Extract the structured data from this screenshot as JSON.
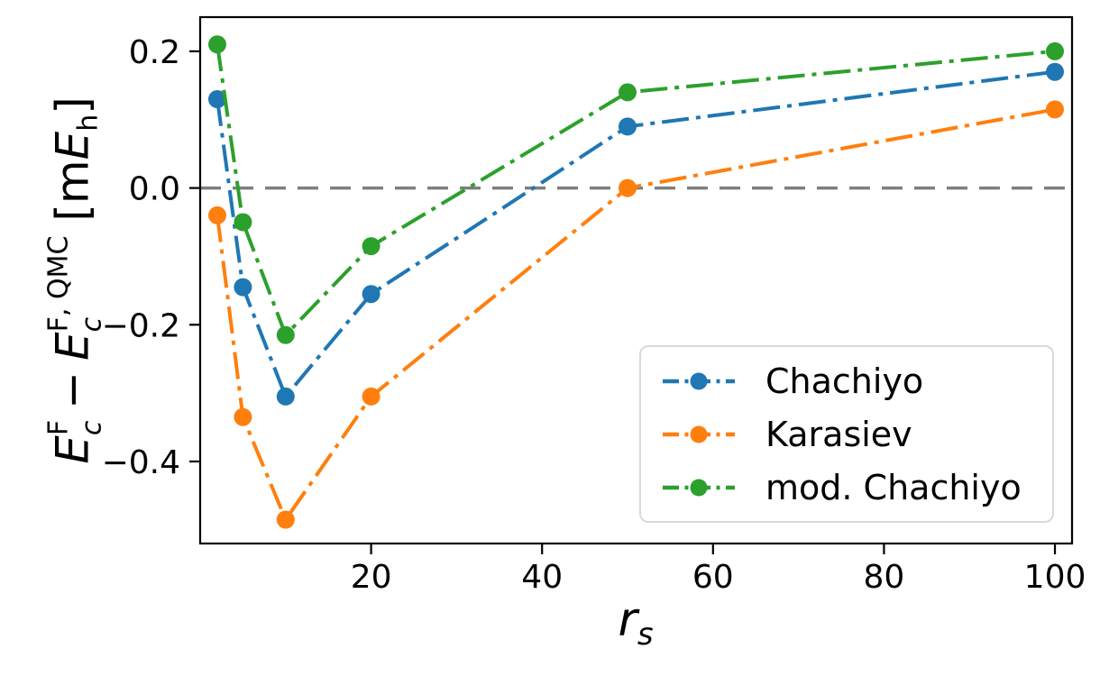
{
  "figure": {
    "background": "#ffffff",
    "spine_color": "#000000",
    "tick_label_color": "#000000"
  },
  "axes": {
    "xtick_labels": [
      "20",
      "40",
      "60",
      "80",
      "100"
    ],
    "ytick_labels": [
      "0.2",
      "0.0",
      "−0.2",
      "−0.4"
    ]
  },
  "labels": {
    "xlabel": {
      "base": "r",
      "sub": "s"
    },
    "ylabel": {
      "e1": "E",
      "e1_sup": "F",
      "e1_sub": "c",
      "minus": "−",
      "e2": "E",
      "e2_sup": "F, QMC",
      "e2_sub": "c",
      "unit_open": "[m",
      "unit_e": "E",
      "unit_sub": "h",
      "unit_close": "]"
    }
  },
  "chart_data": {
    "type": "line",
    "x": [
      2,
      5,
      10,
      20,
      50,
      100
    ],
    "series": [
      {
        "name": "Chachiyo",
        "color": "#1f77b4",
        "values": [
          0.13,
          -0.145,
          -0.305,
          -0.155,
          0.09,
          0.17
        ]
      },
      {
        "name": "Karasiev",
        "color": "#ff7f0e",
        "values": [
          -0.04,
          -0.335,
          -0.485,
          -0.305,
          0.0,
          0.115
        ]
      },
      {
        "name": "mod. Chachiyo",
        "color": "#2ca02c",
        "values": [
          0.21,
          -0.05,
          -0.215,
          -0.085,
          0.14,
          0.2
        ]
      }
    ],
    "title": "",
    "xlabel": "r_s",
    "ylabel": "E_c^F − E_c^{F, QMC} [mE_h]",
    "xticks": [
      20,
      40,
      60,
      80,
      100
    ],
    "yticks": [
      0.2,
      0.0,
      -0.2,
      -0.4
    ],
    "xlim": [
      0,
      102
    ],
    "ylim": [
      -0.52,
      0.25
    ],
    "grid": false,
    "line_style": "dashdot",
    "marker": "circle",
    "marker_radius": 10,
    "line_width": 4,
    "zero_line": {
      "y": 0.0,
      "color": "#7f7f7f",
      "style": "dashed"
    },
    "legend_position": "lower right"
  }
}
